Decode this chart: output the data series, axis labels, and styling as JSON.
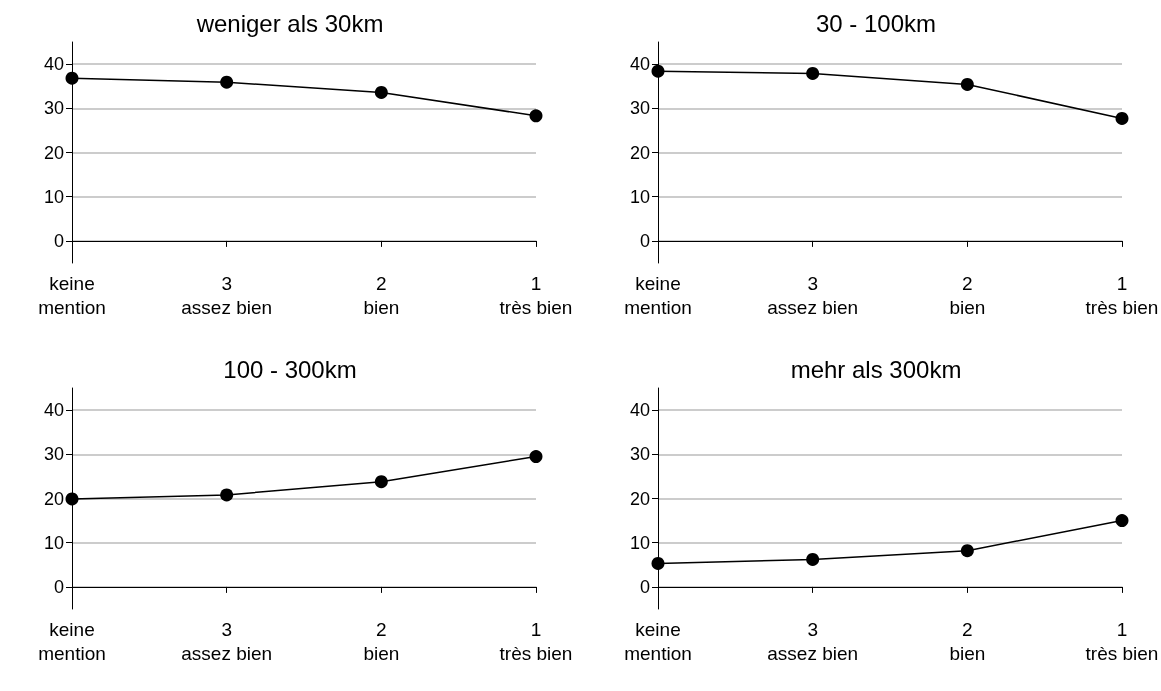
{
  "chart_data": [
    {
      "type": "line",
      "title": "weniger als 30km",
      "categories": [
        "keine\nmention",
        "3\nassez bien",
        "2\nbien",
        "1\ntrès bien"
      ],
      "series": [
        {
          "color": "#000000",
          "values": [
            36.8,
            35.9,
            33.6,
            28.3
          ]
        }
      ],
      "ylim": [
        -5,
        45
      ],
      "yticks": [
        0,
        10,
        20,
        30,
        40
      ],
      "grid": "y",
      "marker": "circle",
      "line_style": "solid"
    },
    {
      "type": "line",
      "title": "30 - 100km",
      "categories": [
        "keine\nmention",
        "3\nassez bien",
        "2\nbien",
        "1\ntrès bien"
      ],
      "series": [
        {
          "color": "#000000",
          "values": [
            38.4,
            37.9,
            35.4,
            27.7
          ]
        }
      ],
      "ylim": [
        -5,
        45
      ],
      "yticks": [
        0,
        10,
        20,
        30,
        40
      ],
      "grid": "y",
      "marker": "circle",
      "line_style": "solid"
    },
    {
      "type": "line",
      "title": "100 - 300km",
      "categories": [
        "keine\nmention",
        "3\nassez bien",
        "2\nbien",
        "1\ntrès bien"
      ],
      "series": [
        {
          "color": "#000000",
          "values": [
            19.9,
            20.8,
            23.8,
            29.5
          ]
        }
      ],
      "ylim": [
        -5,
        45
      ],
      "yticks": [
        0,
        10,
        20,
        30,
        40
      ],
      "grid": "y",
      "marker": "circle",
      "line_style": "solid"
    },
    {
      "type": "line",
      "title": "mehr als 300km",
      "categories": [
        "keine\nmention",
        "3\nassez bien",
        "2\nbien",
        "1\ntrès bien"
      ],
      "series": [
        {
          "color": "#000000",
          "values": [
            5.3,
            6.2,
            8.2,
            15.0
          ]
        }
      ],
      "ylim": [
        -5,
        45
      ],
      "yticks": [
        0,
        10,
        20,
        30,
        40
      ],
      "grid": "y",
      "marker": "circle",
      "line_style": "solid"
    }
  ]
}
